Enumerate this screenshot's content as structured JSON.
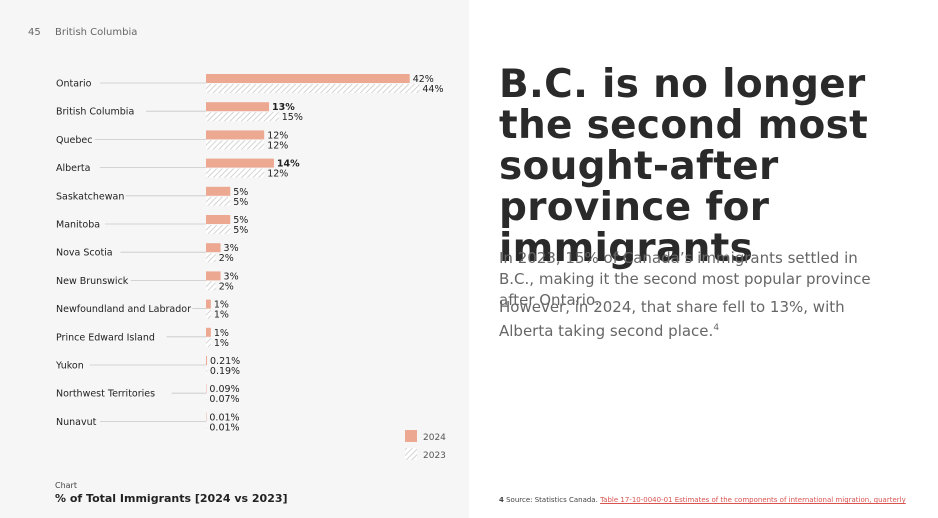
{
  "page": {
    "number": "45",
    "section": "British Columbia"
  },
  "headline": "B.C. is no longer the second most sought-after province for immigrants",
  "paragraph1": "In 2023, 15% of Canada’s immigrants settled in B.C., making it the second most popular province after Ontario.",
  "paragraph2": "However, in 2024, that share fell to 13%, with Alberta taking second place.",
  "paragraph2_sup": "4",
  "caption": {
    "label": "Chart",
    "title": "% of Total Immigrants [2024 vs 2023]"
  },
  "footnote": {
    "number": "4",
    "source": "Source: Statistics Canada.",
    "link_text": "Table 17-10-0040-01  Estimates of the components of international migration, quarterly"
  },
  "colors": {
    "bar_2024": "#eda892",
    "hatch_2023": "#c9c9c9",
    "leader": "#c8c8c8",
    "link": "#d9534f"
  },
  "chart_data": {
    "type": "bar",
    "orientation": "horizontal",
    "categories": [
      "Ontario",
      "British Columbia",
      "Quebec",
      "Alberta",
      "Saskatchewan",
      "Manitoba",
      "Nova Scotia",
      "New Brunswick",
      "Newfoundland and Labrador",
      "Prince Edward Island",
      "Yukon",
      "Northwest Territories",
      "Nunavut"
    ],
    "series": [
      {
        "name": "2024",
        "values": [
          42,
          13,
          12,
          14,
          5,
          5,
          3,
          3,
          1,
          1,
          0.21,
          0.09,
          0.01
        ],
        "labels": [
          "42%",
          "13%",
          "12%",
          "14%",
          "5%",
          "5%",
          "3%",
          "3%",
          "1%",
          "1%",
          "0.21%",
          "0.09%",
          "0.01%"
        ],
        "bold": [
          false,
          true,
          false,
          true,
          false,
          false,
          false,
          false,
          false,
          false,
          false,
          false,
          false
        ]
      },
      {
        "name": "2023",
        "values": [
          44,
          15,
          12,
          12,
          5,
          5,
          2,
          2,
          1,
          1,
          0.19,
          0.07,
          0.01
        ],
        "labels": [
          "44%",
          "15%",
          "12%",
          "12%",
          "5%",
          "5%",
          "2%",
          "2%",
          "1%",
          "1%",
          "0.19%",
          "0.07%",
          "0.01%"
        ]
      }
    ],
    "legend": {
      "entries": [
        "2024",
        "2023"
      ],
      "position": "bottom-right"
    },
    "title": "% of Total Immigrants [2024 vs 2023]",
    "unit": "%",
    "grid": false
  }
}
